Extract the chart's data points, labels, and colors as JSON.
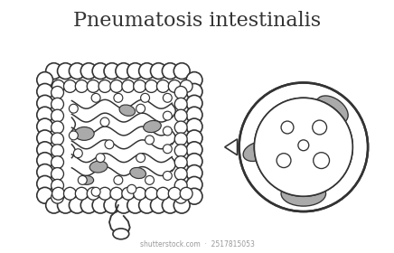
{
  "title": "Pneumatosis intestinalis",
  "title_fontsize": 16,
  "background_color": "#ffffff",
  "line_color": "#333333",
  "gray_fill": "#aaaaaa",
  "line_width": 1.2,
  "figsize": [
    4.36,
    2.8
  ],
  "dpi": 100
}
